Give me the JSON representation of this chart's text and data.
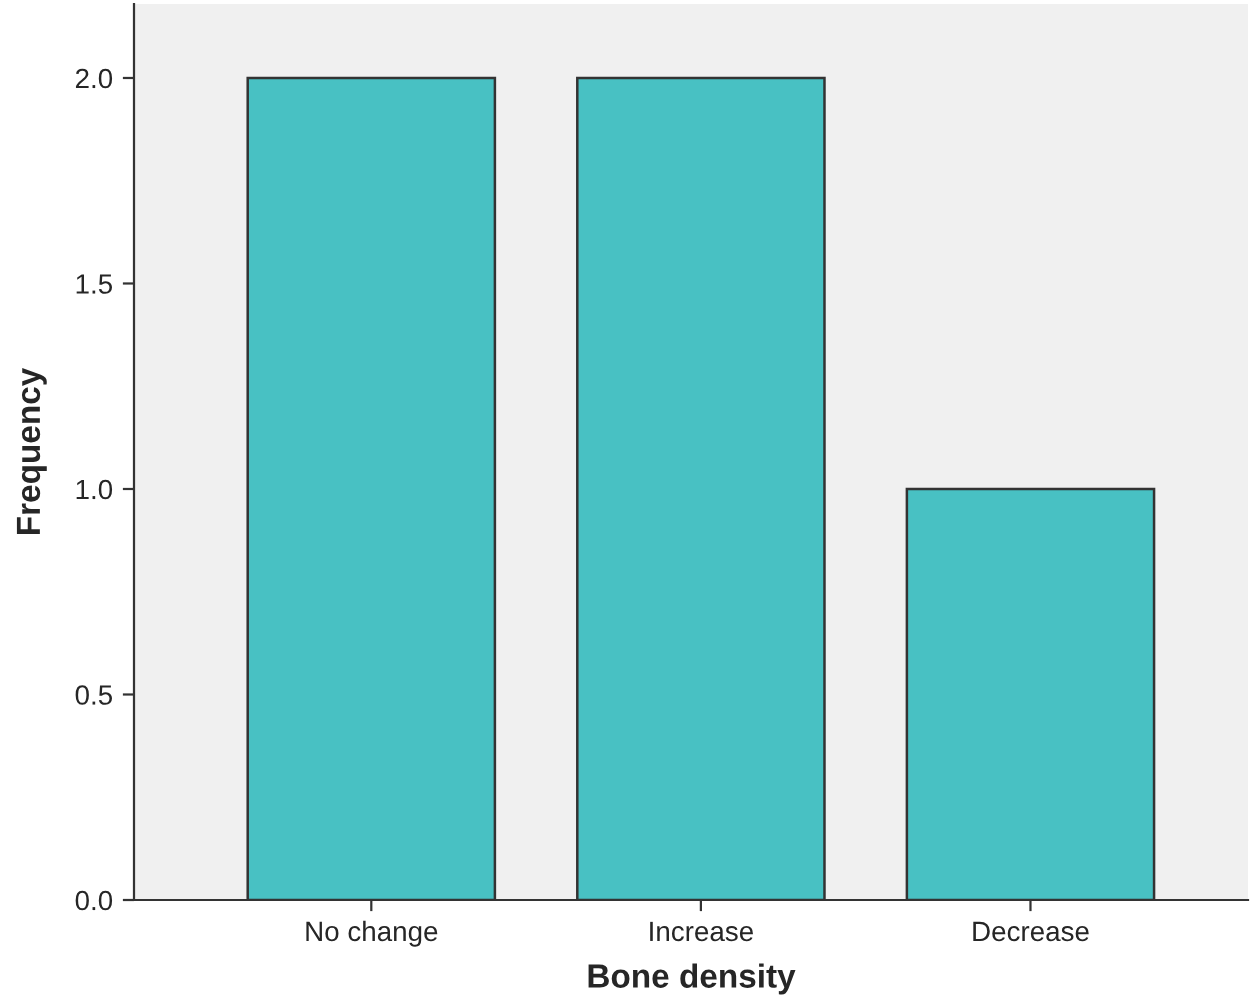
{
  "chart_data": {
    "type": "bar",
    "xlabel": "Bone density",
    "ylabel": "Frequency",
    "categories": [
      "No change",
      "Increase",
      "Decrease"
    ],
    "values": [
      2,
      2,
      1
    ],
    "color": "#48c1c3",
    "ylim": [
      0,
      2.18
    ],
    "yticks": [
      {
        "value": 0,
        "label": "0.0"
      },
      {
        "value": 0.5,
        "label": "0.5"
      },
      {
        "value": 1,
        "label": "1.0"
      },
      {
        "value": 1.5,
        "label": "1.5"
      },
      {
        "value": 2,
        "label": "2.0"
      }
    ],
    "grid": false
  }
}
